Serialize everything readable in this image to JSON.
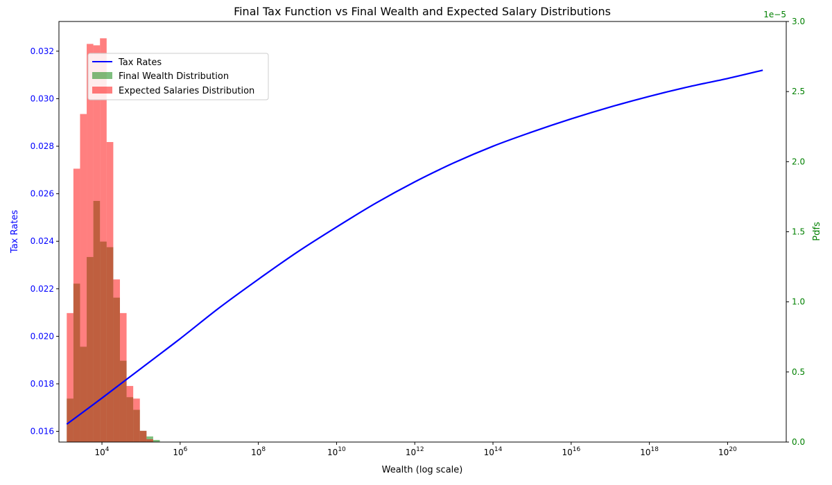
{
  "chart_data": {
    "type": "bar+line",
    "title": "Final Tax Function vs Final Wealth and Expected Salary Distributions",
    "xlabel": "Wealth (log scale)",
    "ylabel_left": "Tax Rates",
    "ylabel_right": "Pdfs",
    "x_scale": "log10",
    "xlim_log10": [
      2.9,
      21.5
    ],
    "ylim_left": [
      0.01555,
      0.03325
    ],
    "ylim_right": [
      0,
      3e-05
    ],
    "right_axis_offset_text": "1e−5",
    "x_ticks": [
      {
        "base": "10",
        "exp": "4",
        "log10": 4
      },
      {
        "base": "10",
        "exp": "6",
        "log10": 6
      },
      {
        "base": "10",
        "exp": "8",
        "log10": 8
      },
      {
        "base": "10",
        "exp": "10",
        "log10": 10
      },
      {
        "base": "10",
        "exp": "12",
        "log10": 12
      },
      {
        "base": "10",
        "exp": "14",
        "log10": 14
      },
      {
        "base": "10",
        "exp": "16",
        "log10": 16
      },
      {
        "base": "10",
        "exp": "18",
        "log10": 18
      },
      {
        "base": "10",
        "exp": "20",
        "log10": 20
      }
    ],
    "y_left_ticks": [
      "0.016",
      "0.018",
      "0.020",
      "0.022",
      "0.024",
      "0.026",
      "0.028",
      "0.030",
      "0.032"
    ],
    "y_right_ticks": [
      "0.0",
      "0.5",
      "1.0",
      "1.5",
      "2.0",
      "2.5",
      "3.0"
    ],
    "legend_position": "upper-left",
    "colors": {
      "tax": "#0000ff",
      "wealth": "#008000",
      "salary": "#ff0000",
      "left_axis": "#0000ff",
      "right_axis": "#008000"
    },
    "bin_width_log10": 0.17,
    "tax_line": {
      "name": "Tax Rates",
      "x_log10": [
        3.1,
        4,
        5,
        6,
        7,
        8,
        9,
        10,
        11,
        12,
        13,
        14,
        15,
        16,
        17,
        18,
        19,
        20,
        20.9
      ],
      "y": [
        0.0163,
        0.0174,
        0.01865,
        0.0199,
        0.0212,
        0.0224,
        0.02355,
        0.0246,
        0.0256,
        0.0265,
        0.0273,
        0.028,
        0.0286,
        0.02915,
        0.02965,
        0.0301,
        0.0305,
        0.03085,
        0.0312
      ]
    },
    "series": [
      {
        "name": "Final Wealth Distribution",
        "x_log10_left_edges": [
          3.1,
          3.27,
          3.44,
          3.61,
          3.78,
          3.95,
          4.12,
          4.29,
          4.46,
          4.63,
          4.8,
          4.97,
          5.14,
          5.31,
          5.48,
          5.65
        ],
        "values": [
          3.1e-06,
          1.13e-05,
          6.8e-06,
          1.32e-05,
          1.72e-05,
          1.43e-05,
          1.39e-05,
          1.03e-05,
          5.8e-06,
          3.2e-06,
          2.3e-06,
          8e-07,
          4e-07,
          1.5e-07,
          0,
          0
        ]
      },
      {
        "name": "Expected Salaries Distribution",
        "x_log10_left_edges": [
          3.1,
          3.27,
          3.44,
          3.61,
          3.78,
          3.95,
          4.12,
          4.29,
          4.46,
          4.63,
          4.8,
          4.97,
          5.14,
          5.31,
          5.48,
          5.65
        ],
        "values": [
          9.2e-06,
          1.95e-05,
          2.34e-05,
          2.84e-05,
          2.83e-05,
          2.88e-05,
          2.14e-05,
          1.16e-05,
          9.2e-06,
          4e-06,
          3.1e-06,
          8e-07,
          2e-07,
          0,
          0,
          0
        ]
      }
    ]
  }
}
